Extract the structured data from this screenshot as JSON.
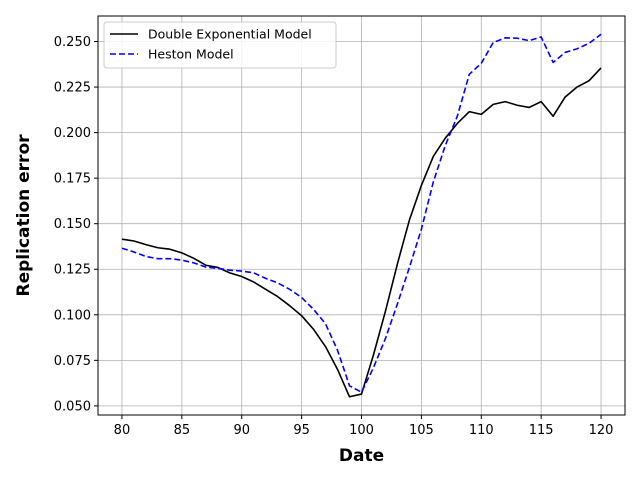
{
  "chart_data": {
    "type": "line",
    "title": "",
    "xlabel": "Date",
    "ylabel": "Replication error",
    "xlim": [
      78,
      122
    ],
    "ylim": [
      0.045,
      0.264
    ],
    "xticks": [
      80,
      85,
      90,
      95,
      100,
      105,
      110,
      115,
      120
    ],
    "yticks": [
      0.05,
      0.075,
      0.1,
      0.125,
      0.15,
      0.175,
      0.2,
      0.225,
      0.25
    ],
    "xtick_labels": [
      "80",
      "85",
      "90",
      "95",
      "100",
      "105",
      "110",
      "115",
      "120"
    ],
    "ytick_labels": [
      "0.050",
      "0.075",
      "0.100",
      "0.125",
      "0.150",
      "0.175",
      "0.200",
      "0.225",
      "0.250"
    ],
    "grid": true,
    "legend_position": "top-left",
    "x": [
      80,
      81,
      82,
      83,
      84,
      85,
      86,
      87,
      88,
      89,
      90,
      91,
      92,
      93,
      94,
      95,
      96,
      97,
      98,
      99,
      100,
      101,
      102,
      103,
      104,
      105,
      106,
      107,
      108,
      109,
      110,
      111,
      112,
      113,
      114,
      115,
      116,
      117,
      118,
      119,
      120
    ],
    "series": [
      {
        "name": "Double Exponential Model",
        "color": "#000000",
        "style": "solid",
        "values": [
          0.1415,
          0.1405,
          0.1385,
          0.1368,
          0.136,
          0.134,
          0.131,
          0.1272,
          0.126,
          0.123,
          0.121,
          0.118,
          0.114,
          0.11,
          0.105,
          0.0995,
          0.092,
          0.0825,
          0.07,
          0.055,
          0.0565,
          0.078,
          0.102,
          0.128,
          0.152,
          0.171,
          0.187,
          0.197,
          0.205,
          0.2115,
          0.21,
          0.2155,
          0.217,
          0.215,
          0.2138,
          0.217,
          0.209,
          0.2195,
          0.225,
          0.2285,
          0.2355
        ]
      },
      {
        "name": "Heston Model",
        "color": "#0000ff",
        "style": "dashed",
        "values": [
          0.1365,
          0.1345,
          0.132,
          0.1308,
          0.1308,
          0.13,
          0.1285,
          0.1262,
          0.1255,
          0.1245,
          0.124,
          0.123,
          0.12,
          0.1175,
          0.114,
          0.1095,
          0.103,
          0.095,
          0.0805,
          0.061,
          0.0575,
          0.071,
          0.087,
          0.106,
          0.126,
          0.147,
          0.173,
          0.193,
          0.209,
          0.232,
          0.238,
          0.2495,
          0.252,
          0.2518,
          0.2505,
          0.2525,
          0.2385,
          0.244,
          0.246,
          0.249,
          0.254
        ]
      }
    ]
  }
}
